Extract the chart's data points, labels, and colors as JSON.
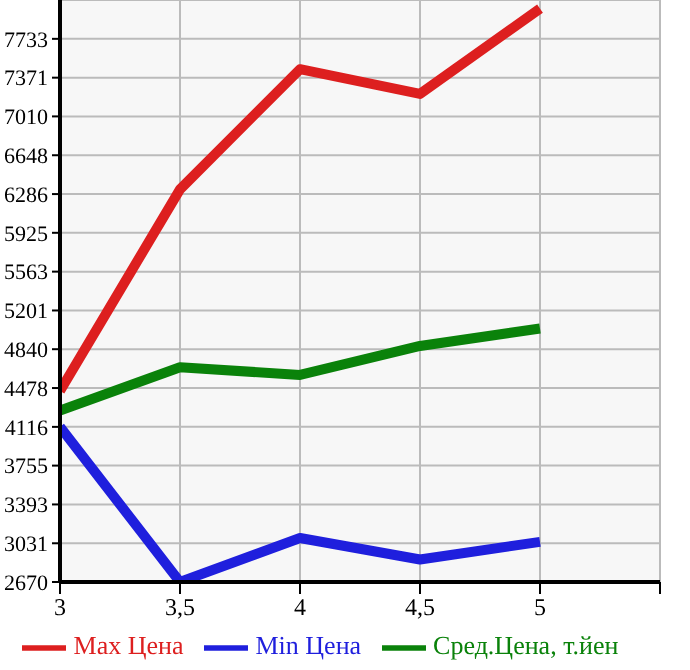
{
  "chart_data": {
    "type": "line",
    "x": [
      3,
      3.5,
      4,
      4.5,
      5
    ],
    "series": [
      {
        "name": "Max Цена",
        "color": "#dd1f1f",
        "values": [
          4450,
          6330,
          7450,
          7220,
          8015
        ]
      },
      {
        "name": "Min Цена",
        "color": "#1f1fdd",
        "values": [
          4116,
          2670,
          3080,
          2880,
          3044
        ]
      },
      {
        "name": "Сред.Цена, т.йен",
        "color": "#0a820a",
        "values": [
          4268,
          4672,
          4600,
          4870,
          5033
        ]
      }
    ],
    "xlim": [
      3,
      5.5
    ],
    "xticks": [
      3,
      {
        "value": 3.5,
        "label": "3,5"
      },
      4,
      {
        "value": 4.5,
        "label": "4,5"
      },
      5,
      {
        "value": 5.5,
        "label": null
      }
    ],
    "ylim": [
      2670,
      8095
    ],
    "yticks": [
      2670,
      3031,
      3393,
      3755,
      4116,
      4478,
      4840,
      5201,
      5563,
      5925,
      6286,
      6648,
      7010,
      7371,
      7733
    ],
    "grid": true,
    "legend": "bottom",
    "marker": "none",
    "line_style": "solid"
  }
}
